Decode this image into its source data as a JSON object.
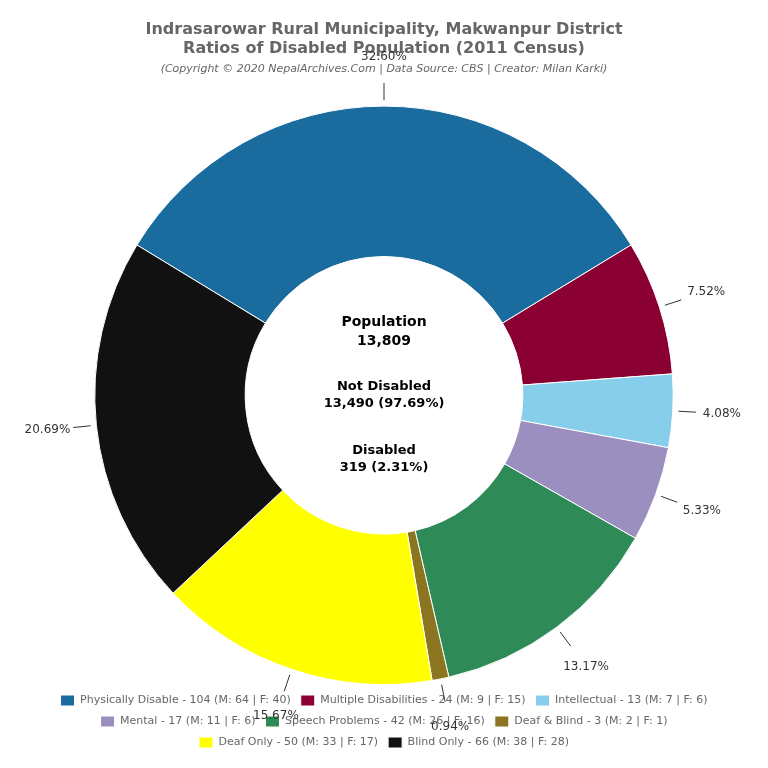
{
  "chart_data": {
    "type": "doughnut",
    "title": [
      "Indrasarowar Rural Municipality, Makwanpur District",
      "Ratios of Disabled Population (2011 Census)"
    ],
    "subtitle": "(Copyright © 2020 NepalArchives.Com | Data Source: CBS | Creator: Milan Karki)",
    "categories": [
      "Physically Disable - 104 (M: 64 | F: 40)",
      "Multiple Disabilities - 24 (M: 9 | F: 15)",
      "Intellectual - 13 (M: 7 | F: 6)",
      "Mental - 17 (M: 11 | F: 6)",
      "Speech Problems - 42 (M: 26 | F: 16)",
      "Deaf & Blind - 3 (M: 2 | F: 1)",
      "Deaf Only - 50 (M: 33 | F: 17)",
      "Blind Only - 66 (M: 38 | F: 28)"
    ],
    "values": [
      32.6,
      7.52,
      4.08,
      5.33,
      13.17,
      0.94,
      15.67,
      20.69
    ],
    "value_labels": [
      "32.60%",
      "7.52%",
      "4.08%",
      "5.33%",
      "13.17%",
      "0.94%",
      "15.67%",
      "20.69%"
    ],
    "colors": [
      "#1a6b9e",
      "#8b0033",
      "#87ceeb",
      "#9b8fc0",
      "#2e8b57",
      "#8b7520",
      "#ffff00",
      "#111111"
    ],
    "data_labels": true,
    "legend": "bottom",
    "annotations": [
      "Population\n13,809",
      "Not Disabled\n13,490 (97.69%)",
      "Disabled\n319 (2.31%)"
    ]
  }
}
